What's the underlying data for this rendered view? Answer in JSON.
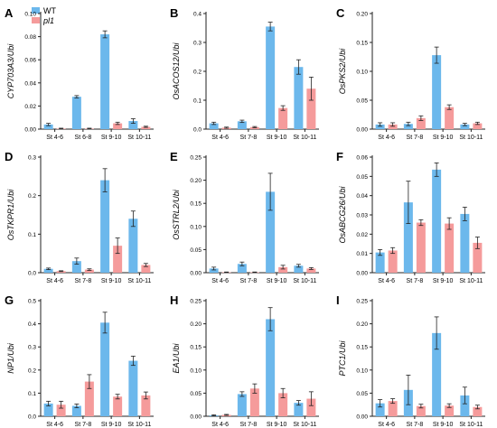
{
  "legend": {
    "items": [
      {
        "label": "WT",
        "color": "#6cb8ec"
      },
      {
        "label": "pl1",
        "color": "#f59b9b"
      }
    ]
  },
  "colors": {
    "wt": "#6cb8ec",
    "pl1": "#f59b9b",
    "axis": "#222222"
  },
  "chart_data": [
    {
      "type": "bar",
      "panel_letter": "A",
      "ylabel": "CYP703A3/Ubi",
      "categories": [
        "St 4-6",
        "St 6-8",
        "St 9-10",
        "St 10-11"
      ],
      "ylim": [
        0,
        0.1
      ],
      "yticks": [
        "0.00",
        "0.02",
        "0.04",
        "0.06",
        "0.08",
        "0.10"
      ],
      "ytick_values": [
        0,
        0.02,
        0.04,
        0.06,
        0.08,
        0.1
      ],
      "series": [
        {
          "name": "WT",
          "values": [
            0.004,
            0.028,
            0.082,
            0.007
          ],
          "errors": [
            0.001,
            0.001,
            0.003,
            0.002
          ]
        },
        {
          "name": "pl1",
          "values": [
            0.0005,
            0.0005,
            0.005,
            0.002
          ],
          "errors": [
            0.0003,
            0.0003,
            0.001,
            0.0005
          ]
        }
      ]
    },
    {
      "type": "bar",
      "panel_letter": "B",
      "ylabel": "OsACOS12/Ubi",
      "categories": [
        "St 4-6",
        "St 7-8",
        "St 9-10",
        "St 10-11"
      ],
      "ylim": [
        0,
        0.4
      ],
      "yticks": [
        "0.0",
        "0.1",
        "0.2",
        "0.3",
        "0.4"
      ],
      "ytick_values": [
        0,
        0.1,
        0.2,
        0.3,
        0.4
      ],
      "series": [
        {
          "name": "WT",
          "values": [
            0.02,
            0.027,
            0.355,
            0.215
          ],
          "errors": [
            0.004,
            0.004,
            0.015,
            0.025
          ]
        },
        {
          "name": "pl1",
          "values": [
            0.005,
            0.007,
            0.073,
            0.14
          ],
          "errors": [
            0.002,
            0.002,
            0.008,
            0.04
          ]
        }
      ]
    },
    {
      "type": "bar",
      "panel_letter": "C",
      "ylabel": "OsPKS2/Ubi",
      "categories": [
        "St 4-6",
        "St 7-8",
        "St 9-10",
        "St 10-11"
      ],
      "ylim": [
        0,
        0.2
      ],
      "yticks": [
        "0.00",
        "0.05",
        "0.10",
        "0.15",
        "0.20"
      ],
      "ytick_values": [
        0,
        0.05,
        0.1,
        0.15,
        0.2
      ],
      "series": [
        {
          "name": "WT",
          "values": [
            0.008,
            0.009,
            0.128,
            0.008
          ],
          "errors": [
            0.003,
            0.003,
            0.014,
            0.002
          ]
        },
        {
          "name": "pl1",
          "values": [
            0.008,
            0.019,
            0.038,
            0.01
          ],
          "errors": [
            0.003,
            0.004,
            0.004,
            0.002
          ]
        }
      ]
    },
    {
      "type": "bar",
      "panel_letter": "D",
      "ylabel": "OsTKPR1/Ubi",
      "categories": [
        "St 4-6",
        "St 7-8",
        "St 9-10",
        "St 10-11"
      ],
      "ylim": [
        0,
        0.3
      ],
      "yticks": [
        "0.0",
        "0.1",
        "0.2",
        "0.3"
      ],
      "ytick_values": [
        0,
        0.1,
        0.2,
        0.3
      ],
      "series": [
        {
          "name": "WT",
          "values": [
            0.01,
            0.03,
            0.24,
            0.14
          ],
          "errors": [
            0.002,
            0.008,
            0.03,
            0.02
          ]
        },
        {
          "name": "pl1",
          "values": [
            0.004,
            0.008,
            0.07,
            0.02
          ],
          "errors": [
            0.001,
            0.002,
            0.02,
            0.004
          ]
        }
      ]
    },
    {
      "type": "bar",
      "panel_letter": "E",
      "ylabel": "OsSTRL2/Ubi",
      "categories": [
        "St 4-6",
        "St 7-8",
        "St 9-10",
        "St 10-11"
      ],
      "ylim": [
        0,
        0.25
      ],
      "yticks": [
        "0.00",
        "0.05",
        "0.10",
        "0.15",
        "0.20",
        "0.25"
      ],
      "ytick_values": [
        0,
        0.05,
        0.1,
        0.15,
        0.2,
        0.25
      ],
      "series": [
        {
          "name": "WT",
          "values": [
            0.009,
            0.019,
            0.175,
            0.015
          ],
          "errors": [
            0.003,
            0.004,
            0.04,
            0.003
          ]
        },
        {
          "name": "pl1",
          "values": [
            0.001,
            0.001,
            0.012,
            0.009
          ],
          "errors": [
            0.0005,
            0.0005,
            0.004,
            0.002
          ]
        }
      ]
    },
    {
      "type": "bar",
      "panel_letter": "F",
      "ylabel": "OsABCG26/Ubi",
      "categories": [
        "St 4-6",
        "St 7-8",
        "St 9-10",
        "St 10-11"
      ],
      "ylim": [
        0,
        0.06
      ],
      "yticks": [
        "0.00",
        "0.01",
        "0.02",
        "0.03",
        "0.04",
        "0.05",
        "0.06"
      ],
      "ytick_values": [
        0,
        0.01,
        0.02,
        0.03,
        0.04,
        0.05,
        0.06
      ],
      "series": [
        {
          "name": "WT",
          "values": [
            0.0105,
            0.0365,
            0.0535,
            0.0305
          ],
          "errors": [
            0.0015,
            0.011,
            0.0035,
            0.0035
          ]
        },
        {
          "name": "pl1",
          "values": [
            0.0115,
            0.026,
            0.0255,
            0.0155
          ],
          "errors": [
            0.0015,
            0.0015,
            0.003,
            0.003
          ]
        }
      ]
    },
    {
      "type": "bar",
      "panel_letter": "G",
      "ylabel": "NP1/Ubi",
      "categories": [
        "St 4-6",
        "St 7-8",
        "St 9-10",
        "St 10-11"
      ],
      "ylim": [
        0,
        0.5
      ],
      "yticks": [
        "0.0",
        "0.1",
        "0.2",
        "0.3",
        "0.4",
        "0.5"
      ],
      "ytick_values": [
        0,
        0.1,
        0.2,
        0.3,
        0.4,
        0.5
      ],
      "series": [
        {
          "name": "WT",
          "values": [
            0.055,
            0.045,
            0.405,
            0.24
          ],
          "errors": [
            0.01,
            0.008,
            0.045,
            0.02
          ]
        },
        {
          "name": "pl1",
          "values": [
            0.05,
            0.15,
            0.085,
            0.09
          ],
          "errors": [
            0.015,
            0.03,
            0.01,
            0.015
          ]
        }
      ]
    },
    {
      "type": "bar",
      "panel_letter": "H",
      "ylabel": "EA1/Ubi",
      "categories": [
        "St 4-6",
        "St 7-8",
        "St 9-10",
        "St 10-11"
      ],
      "ylim": [
        0,
        0.25
      ],
      "yticks": [
        "0.00",
        "0.05",
        "0.10",
        "0.15",
        "0.20",
        "0.25"
      ],
      "ytick_values": [
        0,
        0.05,
        0.1,
        0.15,
        0.2,
        0.25
      ],
      "series": [
        {
          "name": "WT",
          "values": [
            0.002,
            0.048,
            0.21,
            0.029
          ],
          "errors": [
            0.001,
            0.005,
            0.025,
            0.005
          ]
        },
        {
          "name": "pl1",
          "values": [
            0.003,
            0.06,
            0.05,
            0.038
          ],
          "errors": [
            0.001,
            0.01,
            0.01,
            0.015
          ]
        }
      ]
    },
    {
      "type": "bar",
      "panel_letter": "I",
      "ylabel": "PTC1/Ubi",
      "categories": [
        "St 4-6",
        "St 7-8",
        "St 9-10",
        "St 10-11"
      ],
      "ylim": [
        0,
        0.25
      ],
      "yticks": [
        "0.00",
        "0.05",
        "0.10",
        "0.15",
        "0.20",
        "0.25"
      ],
      "ytick_values": [
        0,
        0.05,
        0.1,
        0.15,
        0.2,
        0.25
      ],
      "series": [
        {
          "name": "WT",
          "values": [
            0.028,
            0.057,
            0.18,
            0.045
          ],
          "errors": [
            0.008,
            0.032,
            0.035,
            0.018
          ]
        },
        {
          "name": "pl1",
          "values": [
            0.033,
            0.022,
            0.023,
            0.02
          ],
          "errors": [
            0.005,
            0.004,
            0.004,
            0.004
          ]
        }
      ]
    }
  ]
}
